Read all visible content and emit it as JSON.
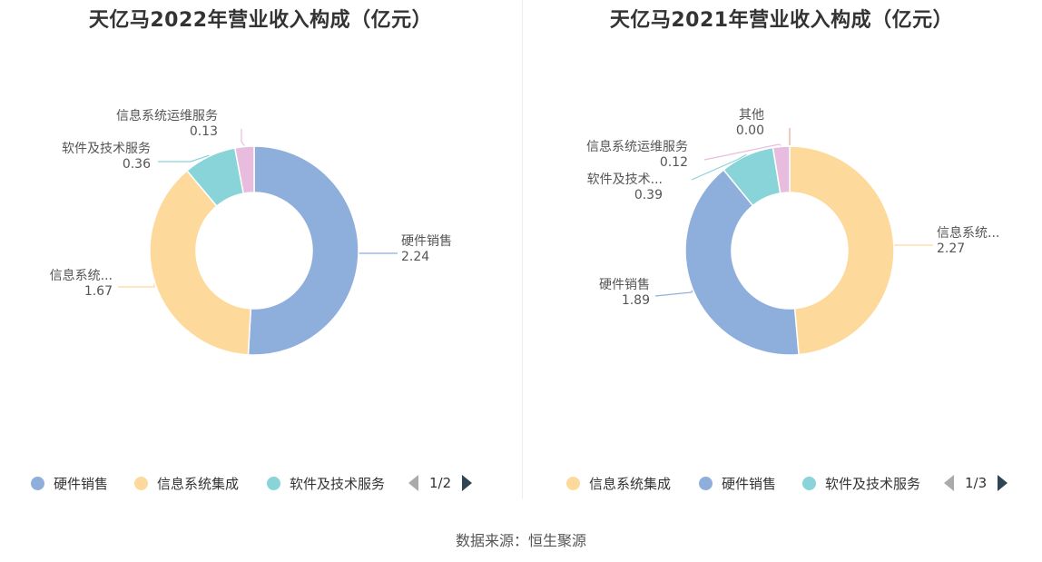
{
  "source_text": "数据来源：恒生聚源",
  "chart_data": [
    {
      "type": "pie",
      "variant": "donut",
      "title": "天亿马2022年营业收入构成（亿元）",
      "series": [
        {
          "name": "硬件销售",
          "label": "硬件销售",
          "value": 2.24,
          "value_text": "2.24",
          "color": "#8eaedb"
        },
        {
          "name": "信息系统集成",
          "label": "信息系统...",
          "value": 1.67,
          "value_text": "1.67",
          "color": "#fdd99b"
        },
        {
          "name": "软件及技术服务",
          "label": "软件及技术服务",
          "value": 0.36,
          "value_text": "0.36",
          "color": "#88d4d8"
        },
        {
          "name": "信息系统运维服务",
          "label": "信息系统运维服务",
          "value": 0.13,
          "value_text": "0.13",
          "color": "#e8bcde"
        }
      ],
      "legend": {
        "items": [
          {
            "label": "硬件销售",
            "color": "#8eaedb"
          },
          {
            "label": "信息系统集成",
            "color": "#fdd99b"
          },
          {
            "label": "软件及技术服务",
            "color": "#88d4d8"
          }
        ],
        "page_text": "1/2",
        "placement": "bottom"
      }
    },
    {
      "type": "pie",
      "variant": "donut",
      "title": "天亿马2021年营业收入构成（亿元）",
      "series": [
        {
          "name": "信息系统集成",
          "label": "信息系统...",
          "value": 2.27,
          "value_text": "2.27",
          "color": "#fdd99b"
        },
        {
          "name": "硬件销售",
          "label": "硬件销售",
          "value": 1.89,
          "value_text": "1.89",
          "color": "#8eaedb"
        },
        {
          "name": "软件及技术服务",
          "label": "软件及技术...",
          "value": 0.39,
          "value_text": "0.39",
          "color": "#88d4d8"
        },
        {
          "name": "信息系统运维服务",
          "label": "信息系统运维服务",
          "value": 0.12,
          "value_text": "0.12",
          "color": "#e8bcde"
        },
        {
          "name": "其他",
          "label": "其他",
          "value": 0.0,
          "value_text": "0.00",
          "color": "#f0a39a"
        }
      ],
      "legend": {
        "items": [
          {
            "label": "信息系统集成",
            "color": "#fdd99b"
          },
          {
            "label": "硬件销售",
            "color": "#8eaedb"
          },
          {
            "label": "软件及技术服务",
            "color": "#88d4d8"
          }
        ],
        "page_text": "1/3",
        "placement": "bottom"
      }
    }
  ]
}
